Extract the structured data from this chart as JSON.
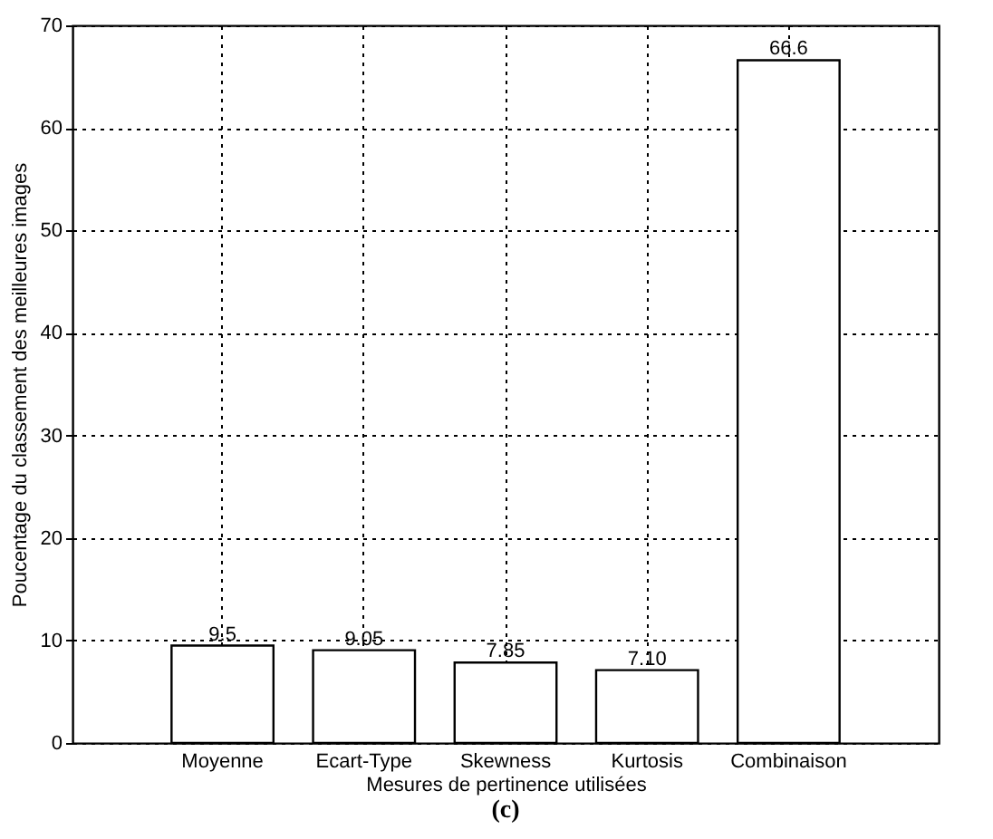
{
  "chart_data": {
    "type": "bar",
    "categories": [
      "Moyenne",
      "Ecart-Type",
      "Skewness",
      "Kurtosis",
      "Combinaison"
    ],
    "values": [
      9.5,
      9.05,
      7.85,
      7.1,
      66.6
    ],
    "value_labels": [
      "9.5",
      "9.05",
      "7.85",
      "7.10",
      "66.6"
    ],
    "color": "#ffffff",
    "xlabel": "Mesures de pertinence utilisées",
    "ylabel": "Poucentage du classement des meilleures images",
    "ylim": [
      0,
      70
    ],
    "yticks": [
      0,
      10,
      20,
      30,
      40,
      50,
      60,
      70
    ],
    "grid": true,
    "annotations": [
      "(c)"
    ]
  }
}
